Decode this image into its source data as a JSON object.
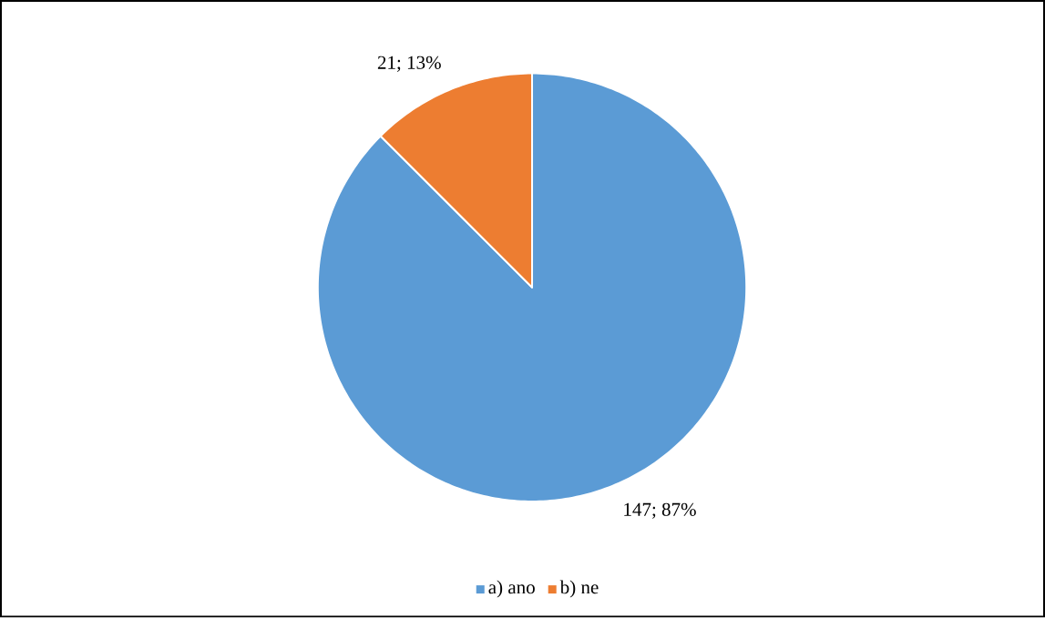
{
  "chart_data": {
    "type": "pie",
    "categories": [
      "a) ano",
      "b) ne"
    ],
    "values": [
      147,
      21
    ],
    "colors": [
      "#5b9bd5",
      "#ed7d31"
    ],
    "value_labels": [
      "147; 87%",
      "21; 13%"
    ],
    "legend": "bottom"
  }
}
